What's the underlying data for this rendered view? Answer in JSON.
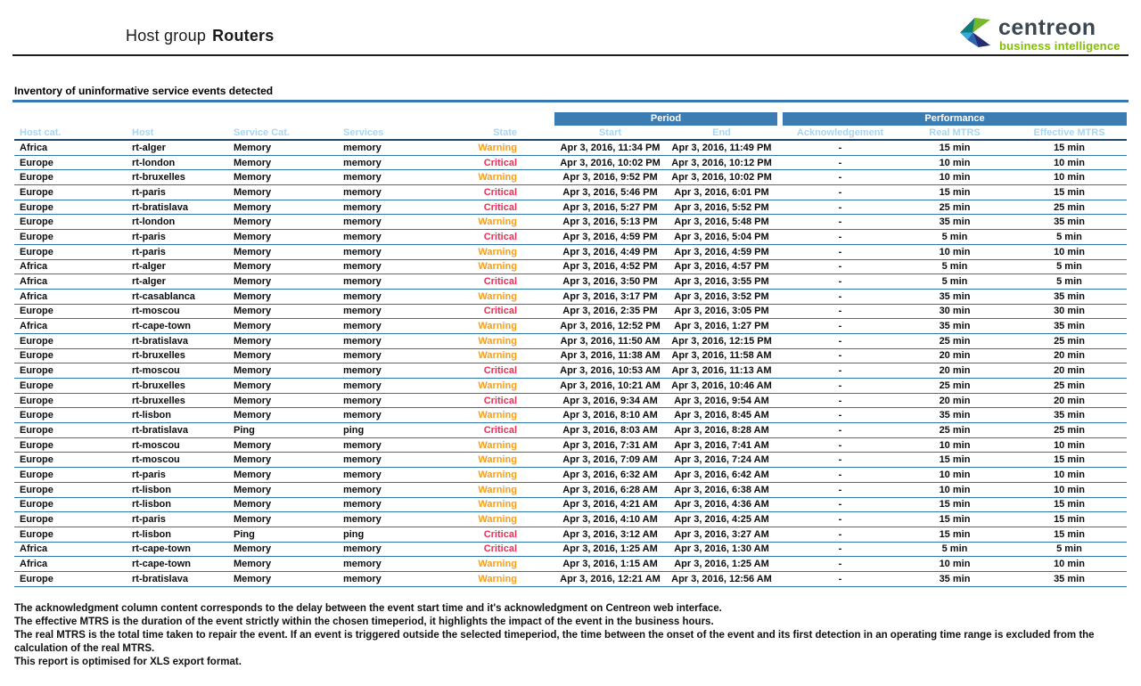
{
  "header": {
    "title_prefix": "Host group",
    "title_bold": "Routers",
    "logo": {
      "name": "centreon",
      "subtitle": "business intelligence"
    }
  },
  "section": {
    "title": "Inventory of uninformative service events detected"
  },
  "table": {
    "group_headers": {
      "period": "Period",
      "performance": "Performance"
    },
    "columns": [
      "Host cat.",
      "Host",
      "Service Cat.",
      "Services",
      "State",
      "Start",
      "End",
      "Acknowledgement",
      "Real MTRS",
      "Effective MTRS"
    ],
    "rows": [
      {
        "host_cat": "Africa",
        "host": "rt-alger",
        "service_cat": "Memory",
        "service": "memory",
        "state": "Warning",
        "start": "Apr 3, 2016, 11:34 PM",
        "end": "Apr 3, 2016, 11:49 PM",
        "ack": "-",
        "real_mtrs": "15 min",
        "effective_mtrs": "15 min"
      },
      {
        "host_cat": "Europe",
        "host": "rt-london",
        "service_cat": "Memory",
        "service": "memory",
        "state": "Critical",
        "start": "Apr 3, 2016, 10:02 PM",
        "end": "Apr 3, 2016, 10:12 PM",
        "ack": "-",
        "real_mtrs": "10 min",
        "effective_mtrs": "10 min"
      },
      {
        "host_cat": "Europe",
        "host": "rt-bruxelles",
        "service_cat": "Memory",
        "service": "memory",
        "state": "Warning",
        "start": "Apr 3, 2016, 9:52 PM",
        "end": "Apr 3, 2016, 10:02 PM",
        "ack": "-",
        "real_mtrs": "10 min",
        "effective_mtrs": "10 min"
      },
      {
        "host_cat": "Europe",
        "host": "rt-paris",
        "service_cat": "Memory",
        "service": "memory",
        "state": "Critical",
        "start": "Apr 3, 2016, 5:46 PM",
        "end": "Apr 3, 2016, 6:01 PM",
        "ack": "-",
        "real_mtrs": "15 min",
        "effective_mtrs": "15 min"
      },
      {
        "host_cat": "Europe",
        "host": "rt-bratislava",
        "service_cat": "Memory",
        "service": "memory",
        "state": "Critical",
        "start": "Apr 3, 2016, 5:27 PM",
        "end": "Apr 3, 2016, 5:52 PM",
        "ack": "-",
        "real_mtrs": "25 min",
        "effective_mtrs": "25 min"
      },
      {
        "host_cat": "Europe",
        "host": "rt-london",
        "service_cat": "Memory",
        "service": "memory",
        "state": "Warning",
        "start": "Apr 3, 2016, 5:13 PM",
        "end": "Apr 3, 2016, 5:48 PM",
        "ack": "-",
        "real_mtrs": "35 min",
        "effective_mtrs": "35 min"
      },
      {
        "host_cat": "Europe",
        "host": "rt-paris",
        "service_cat": "Memory",
        "service": "memory",
        "state": "Critical",
        "start": "Apr 3, 2016, 4:59 PM",
        "end": "Apr 3, 2016, 5:04 PM",
        "ack": "-",
        "real_mtrs": "5 min",
        "effective_mtrs": "5 min"
      },
      {
        "host_cat": "Europe",
        "host": "rt-paris",
        "service_cat": "Memory",
        "service": "memory",
        "state": "Warning",
        "start": "Apr 3, 2016, 4:49 PM",
        "end": "Apr 3, 2016, 4:59 PM",
        "ack": "-",
        "real_mtrs": "10 min",
        "effective_mtrs": "10 min"
      },
      {
        "host_cat": "Africa",
        "host": "rt-alger",
        "service_cat": "Memory",
        "service": "memory",
        "state": "Warning",
        "start": "Apr 3, 2016, 4:52 PM",
        "end": "Apr 3, 2016, 4:57 PM",
        "ack": "-",
        "real_mtrs": "5 min",
        "effective_mtrs": "5 min"
      },
      {
        "host_cat": "Africa",
        "host": "rt-alger",
        "service_cat": "Memory",
        "service": "memory",
        "state": "Critical",
        "start": "Apr 3, 2016, 3:50 PM",
        "end": "Apr 3, 2016, 3:55 PM",
        "ack": "-",
        "real_mtrs": "5 min",
        "effective_mtrs": "5 min"
      },
      {
        "host_cat": "Africa",
        "host": "rt-casablanca",
        "service_cat": "Memory",
        "service": "memory",
        "state": "Warning",
        "start": "Apr 3, 2016, 3:17 PM",
        "end": "Apr 3, 2016, 3:52 PM",
        "ack": "-",
        "real_mtrs": "35 min",
        "effective_mtrs": "35 min"
      },
      {
        "host_cat": "Europe",
        "host": "rt-moscou",
        "service_cat": "Memory",
        "service": "memory",
        "state": "Critical",
        "start": "Apr 3, 2016, 2:35 PM",
        "end": "Apr 3, 2016, 3:05 PM",
        "ack": "-",
        "real_mtrs": "30 min",
        "effective_mtrs": "30 min"
      },
      {
        "host_cat": "Africa",
        "host": "rt-cape-town",
        "service_cat": "Memory",
        "service": "memory",
        "state": "Warning",
        "start": "Apr 3, 2016, 12:52 PM",
        "end": "Apr 3, 2016, 1:27 PM",
        "ack": "-",
        "real_mtrs": "35 min",
        "effective_mtrs": "35 min"
      },
      {
        "host_cat": "Europe",
        "host": "rt-bratislava",
        "service_cat": "Memory",
        "service": "memory",
        "state": "Warning",
        "start": "Apr 3, 2016, 11:50 AM",
        "end": "Apr 3, 2016, 12:15 PM",
        "ack": "-",
        "real_mtrs": "25 min",
        "effective_mtrs": "25 min"
      },
      {
        "host_cat": "Europe",
        "host": "rt-bruxelles",
        "service_cat": "Memory",
        "service": "memory",
        "state": "Warning",
        "start": "Apr 3, 2016, 11:38 AM",
        "end": "Apr 3, 2016, 11:58 AM",
        "ack": "-",
        "real_mtrs": "20 min",
        "effective_mtrs": "20 min"
      },
      {
        "host_cat": "Europe",
        "host": "rt-moscou",
        "service_cat": "Memory",
        "service": "memory",
        "state": "Critical",
        "start": "Apr 3, 2016, 10:53 AM",
        "end": "Apr 3, 2016, 11:13 AM",
        "ack": "-",
        "real_mtrs": "20 min",
        "effective_mtrs": "20 min"
      },
      {
        "host_cat": "Europe",
        "host": "rt-bruxelles",
        "service_cat": "Memory",
        "service": "memory",
        "state": "Warning",
        "start": "Apr 3, 2016, 10:21 AM",
        "end": "Apr 3, 2016, 10:46 AM",
        "ack": "-",
        "real_mtrs": "25 min",
        "effective_mtrs": "25 min"
      },
      {
        "host_cat": "Europe",
        "host": "rt-bruxelles",
        "service_cat": "Memory",
        "service": "memory",
        "state": "Critical",
        "start": "Apr 3, 2016, 9:34 AM",
        "end": "Apr 3, 2016, 9:54 AM",
        "ack": "-",
        "real_mtrs": "20 min",
        "effective_mtrs": "20 min"
      },
      {
        "host_cat": "Europe",
        "host": "rt-lisbon",
        "service_cat": "Memory",
        "service": "memory",
        "state": "Warning",
        "start": "Apr 3, 2016, 8:10 AM",
        "end": "Apr 3, 2016, 8:45 AM",
        "ack": "-",
        "real_mtrs": "35 min",
        "effective_mtrs": "35 min"
      },
      {
        "host_cat": "Europe",
        "host": "rt-bratislava",
        "service_cat": "Ping",
        "service": "ping",
        "state": "Critical",
        "start": "Apr 3, 2016, 8:03 AM",
        "end": "Apr 3, 2016, 8:28 AM",
        "ack": "-",
        "real_mtrs": "25 min",
        "effective_mtrs": "25 min"
      },
      {
        "host_cat": "Europe",
        "host": "rt-moscou",
        "service_cat": "Memory",
        "service": "memory",
        "state": "Warning",
        "start": "Apr 3, 2016, 7:31 AM",
        "end": "Apr 3, 2016, 7:41 AM",
        "ack": "-",
        "real_mtrs": "10 min",
        "effective_mtrs": "10 min"
      },
      {
        "host_cat": "Europe",
        "host": "rt-moscou",
        "service_cat": "Memory",
        "service": "memory",
        "state": "Warning",
        "start": "Apr 3, 2016, 7:09 AM",
        "end": "Apr 3, 2016, 7:24 AM",
        "ack": "-",
        "real_mtrs": "15 min",
        "effective_mtrs": "15 min"
      },
      {
        "host_cat": "Europe",
        "host": "rt-paris",
        "service_cat": "Memory",
        "service": "memory",
        "state": "Warning",
        "start": "Apr 3, 2016, 6:32 AM",
        "end": "Apr 3, 2016, 6:42 AM",
        "ack": "-",
        "real_mtrs": "10 min",
        "effective_mtrs": "10 min"
      },
      {
        "host_cat": "Europe",
        "host": "rt-lisbon",
        "service_cat": "Memory",
        "service": "memory",
        "state": "Warning",
        "start": "Apr 3, 2016, 6:28 AM",
        "end": "Apr 3, 2016, 6:38 AM",
        "ack": "-",
        "real_mtrs": "10 min",
        "effective_mtrs": "10 min"
      },
      {
        "host_cat": "Europe",
        "host": "rt-lisbon",
        "service_cat": "Memory",
        "service": "memory",
        "state": "Warning",
        "start": "Apr 3, 2016, 4:21 AM",
        "end": "Apr 3, 2016, 4:36 AM",
        "ack": "-",
        "real_mtrs": "15 min",
        "effective_mtrs": "15 min"
      },
      {
        "host_cat": "Europe",
        "host": "rt-paris",
        "service_cat": "Memory",
        "service": "memory",
        "state": "Warning",
        "start": "Apr 3, 2016, 4:10 AM",
        "end": "Apr 3, 2016, 4:25 AM",
        "ack": "-",
        "real_mtrs": "15 min",
        "effective_mtrs": "15 min"
      },
      {
        "host_cat": "Europe",
        "host": "rt-lisbon",
        "service_cat": "Ping",
        "service": "ping",
        "state": "Critical",
        "start": "Apr 3, 2016, 3:12 AM",
        "end": "Apr 3, 2016, 3:27 AM",
        "ack": "-",
        "real_mtrs": "15 min",
        "effective_mtrs": "15 min"
      },
      {
        "host_cat": "Africa",
        "host": "rt-cape-town",
        "service_cat": "Memory",
        "service": "memory",
        "state": "Critical",
        "start": "Apr 3, 2016, 1:25 AM",
        "end": "Apr 3, 2016, 1:30 AM",
        "ack": "-",
        "real_mtrs": "5 min",
        "effective_mtrs": "5 min"
      },
      {
        "host_cat": "Africa",
        "host": "rt-cape-town",
        "service_cat": "Memory",
        "service": "memory",
        "state": "Warning",
        "start": "Apr 3, 2016, 1:15 AM",
        "end": "Apr 3, 2016, 1:25 AM",
        "ack": "-",
        "real_mtrs": "10 min",
        "effective_mtrs": "10 min"
      },
      {
        "host_cat": "Europe",
        "host": "rt-bratislava",
        "service_cat": "Memory",
        "service": "memory",
        "state": "Warning",
        "start": "Apr 3, 2016, 12:21 AM",
        "end": "Apr 3, 2016, 12:56 AM",
        "ack": "-",
        "real_mtrs": "35 min",
        "effective_mtrs": "35 min"
      }
    ]
  },
  "footer": {
    "notes": [
      "The acknowledgment column content corresponds to the delay between the event start time and it's acknowledgment on Centreon web interface.",
      "The effective MTRS is the duration of the event strictly within the chosen timeperiod, it highlights the impact of the event in the business hours.",
      "The real MTRS is the total time taken to repair the event. If an event is triggered outside the selected timeperiod, the time between the onset of the event and its first detection in an operating time range is excluded from the",
      "calculation of the real MTRS.",
      "This report is optimised for XLS export format."
    ]
  },
  "colors": {
    "header_band": "#3b7cb3",
    "header_text": "#a9d6ef",
    "row_line": "#2e73a9",
    "warning": "#f59e1b",
    "critical": "#e73056",
    "logo_green": "#84bd00"
  }
}
